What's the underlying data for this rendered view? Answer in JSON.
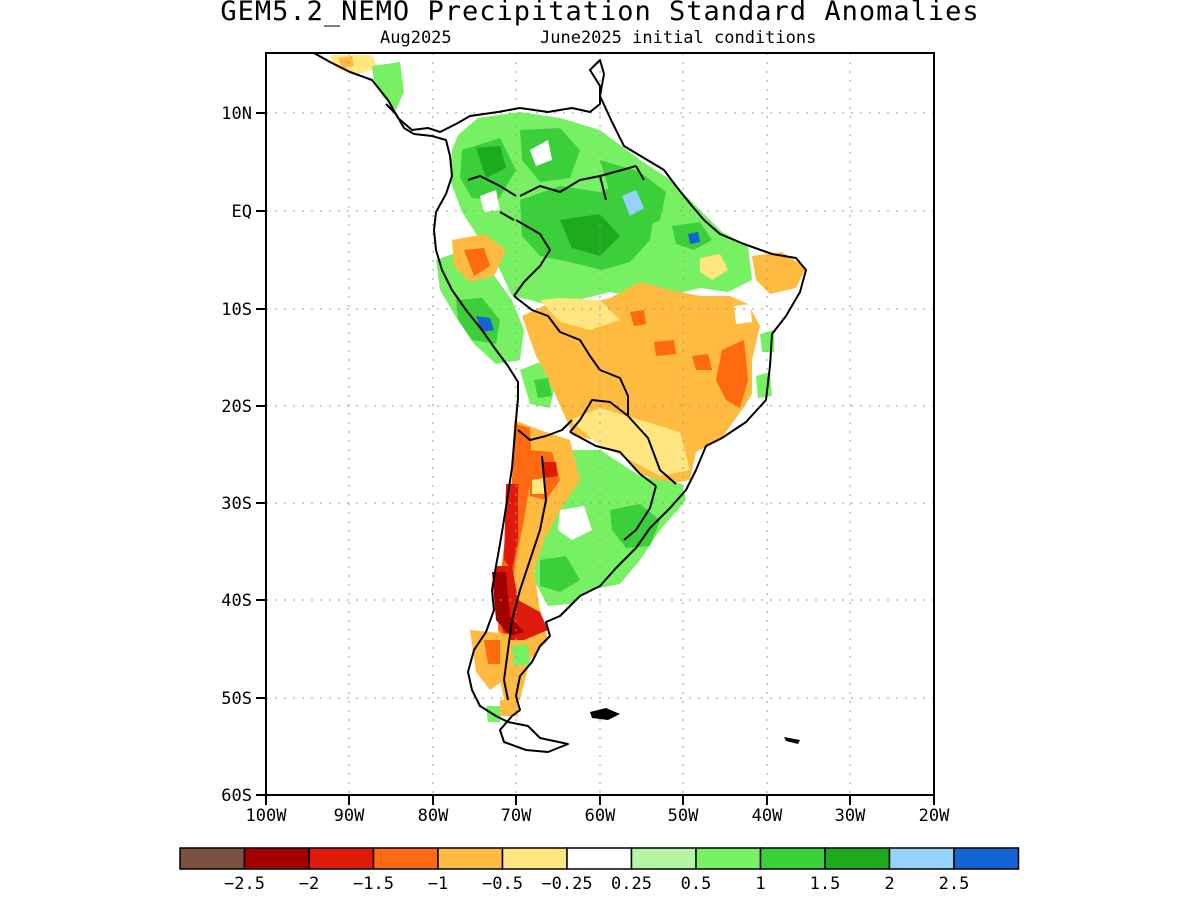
{
  "header": {
    "title": "GEM5.2_NEMO Precipitation Standard Anomalies",
    "valid_month": "Aug2025",
    "init_conditions": "June2025 initial conditions"
  },
  "map": {
    "lat_labels": [
      "10N",
      "EQ",
      "10S",
      "20S",
      "30S",
      "40S",
      "50S",
      "60S"
    ],
    "lon_labels": [
      "100W",
      "90W",
      "80W",
      "70W",
      "60W",
      "50W",
      "40W",
      "30W",
      "20W"
    ],
    "extent": {
      "lon": [
        -100,
        -20
      ],
      "lat": [
        -60,
        16
      ]
    },
    "grid": "dotted"
  },
  "colorbar": {
    "colors": [
      "#7a5040",
      "#a50000",
      "#e01a0a",
      "#ff6a10",
      "#ffbb40",
      "#ffe680",
      "#ffffff",
      "#b4f5a4",
      "#78f064",
      "#3ccf3c",
      "#1eaa1e",
      "#96d2fa",
      "#1464d2"
    ],
    "labels": [
      "−2.5",
      "−2",
      "−1.5",
      "−1",
      "−0.5",
      "−0.25",
      "0.25",
      "0.5",
      "1",
      "1.5",
      "2",
      "2.5"
    ]
  }
}
